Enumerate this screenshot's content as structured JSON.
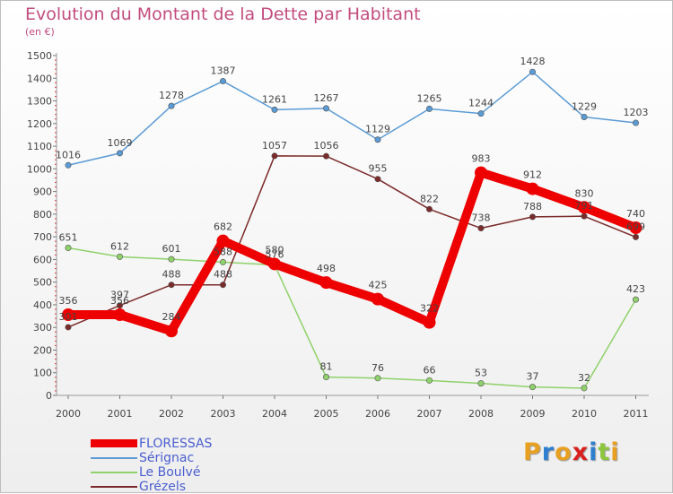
{
  "chart_data": {
    "type": "line",
    "title": "Evolution du Montant de la Dette par Habitant",
    "subtitle": "(en €)",
    "x": [
      "2000",
      "2001",
      "2002",
      "2003",
      "2004",
      "2005",
      "2006",
      "2007",
      "2008",
      "2009",
      "2010",
      "2011"
    ],
    "ylim": [
      0,
      1500
    ],
    "yticks": [
      0,
      100,
      200,
      300,
      400,
      500,
      600,
      700,
      800,
      900,
      1000,
      1100,
      1200,
      1300,
      1400,
      1500
    ],
    "grid": false,
    "legend": "bottom-left",
    "series": [
      {
        "name": "Sérignac",
        "color": "#5b9bd5",
        "values": [
          1016,
          1069,
          1278,
          1387,
          1261,
          1267,
          1129,
          1265,
          1244,
          1428,
          1229,
          1203
        ]
      },
      {
        "name": "Le Boulvé",
        "color": "#8fd16a",
        "values": [
          651,
          612,
          601,
          588,
          576,
          81,
          76,
          66,
          53,
          37,
          32,
          423
        ]
      },
      {
        "name": "Grézels",
        "color": "#7b2a2a",
        "values": [
          301,
          397,
          488,
          488,
          1057,
          1056,
          955,
          822,
          738,
          788,
          791,
          699
        ]
      },
      {
        "name": "FLORESSAS",
        "color": "#ee0000",
        "values": [
          356,
          356,
          284,
          682,
          580,
          498,
          425,
          322,
          983,
          912,
          830,
          740
        ]
      }
    ]
  },
  "legend_labels": {
    "floressas": "FLORESSAS",
    "serignac": "Sérignac",
    "boulve": "Le Boulvé",
    "grezels": "Grézels"
  },
  "logo": {
    "text": "Proxiti",
    "letter_colors": [
      "#e8a020",
      "#2f7fd0",
      "#e8a020",
      "#d92020",
      "#2f7fd0",
      "#8cc63f",
      "#e8a020"
    ]
  }
}
